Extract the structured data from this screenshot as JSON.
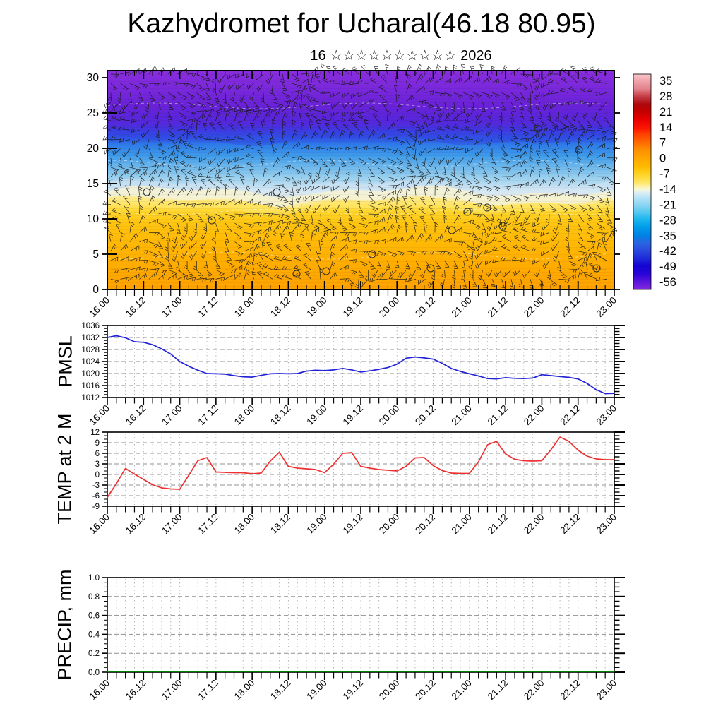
{
  "header": {
    "title": "Kazhydromet for Ucharal(46.18 80.95)",
    "subtitle": "16 ☆☆☆☆☆☆☆☆☆☆ 2026"
  },
  "time_axis": {
    "labels": [
      "16.00",
      "16.12",
      "17.00",
      "17.12",
      "18.00",
      "18.12",
      "19.00",
      "19.12",
      "20.00",
      "20.12",
      "21.00",
      "21.12",
      "22.00",
      "22.12",
      "23.00"
    ],
    "minor_step_hours": 3,
    "label_step_hours": 12
  },
  "colors": {
    "frame": "#000000",
    "grid_dash": "#909090",
    "grid_dot": "#b4b4b4",
    "background": "#ffffff",
    "pmsl_line": "#2323d7",
    "temp_line": "#ee3030",
    "precip_line": "#008000",
    "barb": "#181818"
  },
  "chart_data": [
    {
      "id": "cross_section",
      "type": "heatmap",
      "title": "",
      "ylabel": "",
      "ylim": [
        0,
        31
      ],
      "y_ticks": [
        0,
        5,
        10,
        15,
        20,
        25,
        30
      ],
      "overlay": "dense wind barbs, calm circles, faint white dashed contours",
      "legend_position": "right-colorbar",
      "colorbar_tick_labels": [
        "35",
        "28",
        "21",
        "14",
        "7",
        "0",
        "-7",
        "-14",
        "-21",
        "-28",
        "-35",
        "-42",
        "-49",
        "-56"
      ],
      "colorbar_gradient": [
        {
          "pos": 0.0,
          "color": "#f7c6ca"
        },
        {
          "pos": 0.03,
          "color": "#f0a6ac"
        },
        {
          "pos": 0.07,
          "color": "#e28089"
        },
        {
          "pos": 0.1,
          "color": "#c8434c"
        },
        {
          "pos": 0.14,
          "color": "#ad080c"
        },
        {
          "pos": 0.17,
          "color": "#c20000"
        },
        {
          "pos": 0.21,
          "color": "#e60000"
        },
        {
          "pos": 0.25,
          "color": "#fb1500"
        },
        {
          "pos": 0.28,
          "color": "#ff4200"
        },
        {
          "pos": 0.32,
          "color": "#ff6d00"
        },
        {
          "pos": 0.35,
          "color": "#ff8e00"
        },
        {
          "pos": 0.39,
          "color": "#ffa600"
        },
        {
          "pos": 0.43,
          "color": "#ffbb00"
        },
        {
          "pos": 0.46,
          "color": "#ffd01e"
        },
        {
          "pos": 0.5,
          "color": "#ffe45e"
        },
        {
          "pos": 0.52,
          "color": "#fdf0a0"
        },
        {
          "pos": 0.535,
          "color": "#f8f8d8"
        },
        {
          "pos": 0.55,
          "color": "#ddeef4"
        },
        {
          "pos": 0.57,
          "color": "#bce4f6"
        },
        {
          "pos": 0.605,
          "color": "#8ed6f2"
        },
        {
          "pos": 0.64,
          "color": "#58c8f0"
        },
        {
          "pos": 0.675,
          "color": "#1ab6ee"
        },
        {
          "pos": 0.71,
          "color": "#009ce8"
        },
        {
          "pos": 0.75,
          "color": "#0080e4"
        },
        {
          "pos": 0.785,
          "color": "#2a64e2"
        },
        {
          "pos": 0.82,
          "color": "#2948de"
        },
        {
          "pos": 0.855,
          "color": "#1e2ad8"
        },
        {
          "pos": 0.89,
          "color": "#1404d4"
        },
        {
          "pos": 0.93,
          "color": "#2a04d8"
        },
        {
          "pos": 0.965,
          "color": "#5c16dc"
        },
        {
          "pos": 1.0,
          "color": "#8428e0"
        }
      ],
      "field_gradient": [
        {
          "pos": 0.0,
          "color": "#8a2ede"
        },
        {
          "pos": 0.16,
          "color": "#6a22d8"
        },
        {
          "pos": 0.24,
          "color": "#5428dc"
        },
        {
          "pos": 0.275,
          "color": "#3d3ae0"
        },
        {
          "pos": 0.31,
          "color": "#2f55e6"
        },
        {
          "pos": 0.34,
          "color": "#2f7ce8"
        },
        {
          "pos": 0.39,
          "color": "#3f9cea"
        },
        {
          "pos": 0.435,
          "color": "#6ab6ec"
        },
        {
          "pos": 0.485,
          "color": "#96ceee"
        },
        {
          "pos": 0.53,
          "color": "#c2e0f2"
        },
        {
          "pos": 0.558,
          "color": "#e0edf2"
        },
        {
          "pos": 0.574,
          "color": "#f4f2d6"
        },
        {
          "pos": 0.59,
          "color": "#fdeda0"
        },
        {
          "pos": 0.615,
          "color": "#ffe35c"
        },
        {
          "pos": 0.645,
          "color": "#ffd52c"
        },
        {
          "pos": 0.695,
          "color": "#ffc612"
        },
        {
          "pos": 0.775,
          "color": "#ffba06"
        },
        {
          "pos": 0.87,
          "color": "#ffae00"
        },
        {
          "pos": 1.0,
          "color": "#ffa200"
        }
      ]
    },
    {
      "id": "pmsl",
      "type": "line",
      "ylabel": "PMSL",
      "ylim": [
        1012,
        1036
      ],
      "y_ticks": [
        1012,
        1016,
        1020,
        1024,
        1028,
        1032,
        1036
      ],
      "y_minor_step": 1,
      "x_start": "16.00",
      "x_end": "23.00",
      "x_step_hours": 3,
      "line_color": "#2323d7",
      "values": [
        1032.0,
        1032.6,
        1031.9,
        1030.6,
        1030.4,
        1029.6,
        1028.2,
        1026.5,
        1024.0,
        1022.4,
        1021.1,
        1020.0,
        1019.9,
        1019.8,
        1019.3,
        1018.9,
        1018.8,
        1019.4,
        1019.9,
        1020.0,
        1019.9,
        1020.0,
        1020.8,
        1021.1,
        1021.0,
        1021.2,
        1021.7,
        1021.2,
        1020.5,
        1020.9,
        1021.4,
        1022.0,
        1023.1,
        1025.1,
        1025.5,
        1025.2,
        1024.8,
        1023.4,
        1021.7,
        1020.7,
        1019.9,
        1019.2,
        1018.3,
        1018.2,
        1018.6,
        1018.4,
        1018.3,
        1018.5,
        1019.6,
        1019.3,
        1019.0,
        1018.7,
        1018.2,
        1016.7,
        1014.6,
        1013.3,
        1013.4
      ]
    },
    {
      "id": "temp_2m",
      "type": "line",
      "ylabel": "TEMP at 2 M",
      "ylim": [
        -9,
        12
      ],
      "y_ticks": [
        -9,
        -6,
        -3,
        0,
        3,
        6,
        9,
        12
      ],
      "y_minor_step": 1,
      "x_start": "16.00",
      "x_end": "23.00",
      "x_step_hours": 3,
      "line_color": "#ee3030",
      "values": [
        -6.5,
        -2.6,
        1.7,
        0.1,
        -1.4,
        -2.9,
        -3.8,
        -4.1,
        -4.2,
        -0.2,
        3.9,
        4.8,
        0.7,
        0.6,
        0.5,
        0.5,
        0.2,
        0.4,
        3.8,
        6.3,
        2.3,
        1.8,
        1.6,
        1.4,
        0.5,
        2.9,
        6.0,
        6.2,
        2.3,
        1.8,
        1.4,
        1.2,
        1.0,
        2.3,
        4.7,
        4.8,
        2.5,
        1.1,
        0.4,
        0.3,
        0.3,
        3.6,
        8.4,
        9.4,
        5.8,
        4.3,
        3.9,
        3.8,
        3.9,
        7.0,
        10.6,
        9.4,
        6.9,
        5.2,
        4.4,
        4.2,
        4.2
      ]
    },
    {
      "id": "precip",
      "type": "line",
      "ylabel": "PRECIP, mm",
      "ylim": [
        0.0,
        1.0
      ],
      "y_ticks": [
        0.0,
        0.2,
        0.4,
        0.6,
        0.8,
        1.0
      ],
      "y_minor_step": 0.05,
      "x_start": "16.00",
      "x_end": "23.00",
      "x_step_hours": 3,
      "line_color": "#008000",
      "constant_value": 0,
      "n_points": 57
    }
  ]
}
